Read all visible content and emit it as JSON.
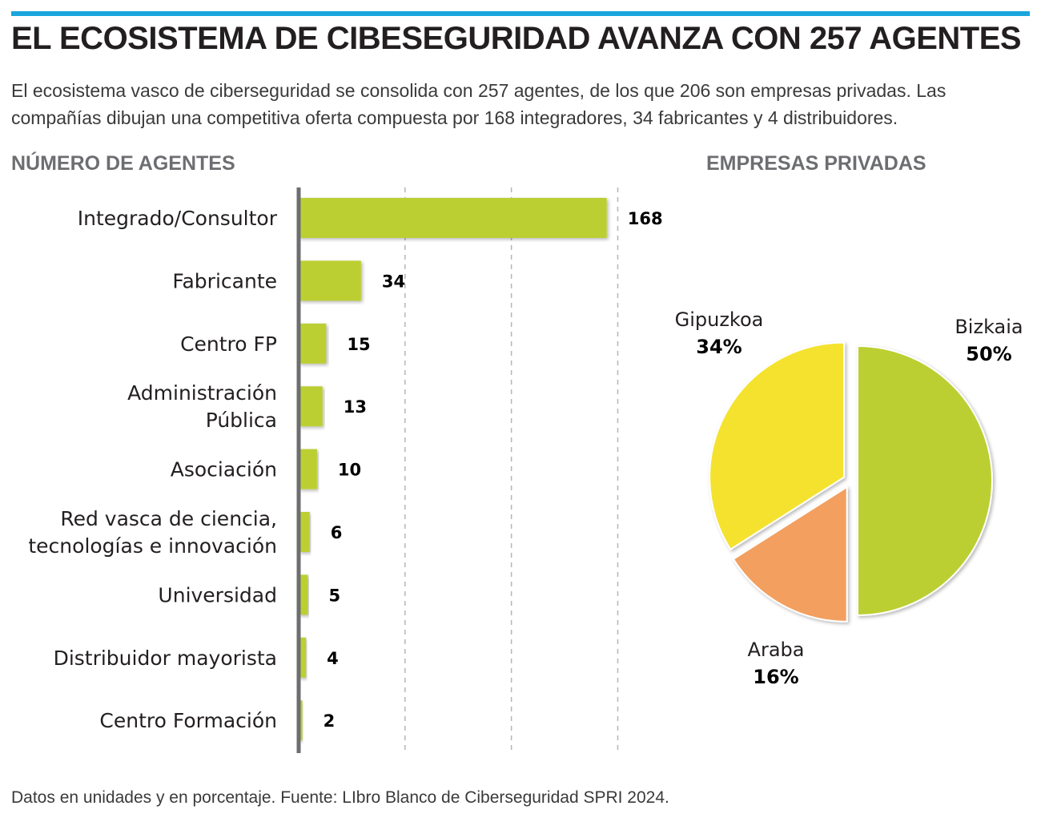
{
  "header": {
    "title": "EL ECOSISTEMA DE CIBESEGURIDAD AVANZA CON 257 AGENTES",
    "lede": "El ecosistema vasco de ciberseguridad se consolida con 257 agentes, de los que 206 son empresas privadas. Las compañías dibujan una competitiva oferta compuesta por 168 integradores, 34 fabricantes y 4 distribuidores."
  },
  "colors": {
    "accent_rule": "#1aa6dd",
    "bar": "#bccf33",
    "axis": "#6d6e71",
    "grid": "#b5b5b5",
    "bizkaia": "#bccf33",
    "gipuzkoa": "#f5e22e",
    "araba": "#f29f5f"
  },
  "chart_data": [
    {
      "type": "bar",
      "orientation": "horizontal",
      "title": "NÚMERO DE AGENTES",
      "categories": [
        [
          "Integrado/Consultor"
        ],
        [
          "Fabricante"
        ],
        [
          "Centro FP"
        ],
        [
          "Administración",
          "Pública"
        ],
        [
          "Asociación"
        ],
        [
          "Red vasca de ciencia,",
          "tecnologías e innovación"
        ],
        [
          "Universidad"
        ],
        [
          "Distribuidor mayorista"
        ],
        [
          "Centro Formación"
        ]
      ],
      "values": [
        168,
        34,
        15,
        13,
        10,
        6,
        5,
        4,
        2
      ],
      "xlim": [
        0,
        175
      ],
      "grid_step": 58,
      "grid": true
    },
    {
      "type": "pie",
      "title": "EMPRESAS PRIVADAS",
      "slices": [
        {
          "name": "Bizkaia",
          "value": 50,
          "label": "50%",
          "color_key": "bizkaia"
        },
        {
          "name": "Araba",
          "value": 16,
          "label": "16%",
          "color_key": "araba"
        },
        {
          "name": "Gipuzkoa",
          "value": 34,
          "label": "34%",
          "color_key": "gipuzkoa"
        }
      ]
    }
  ],
  "footnote": "Datos en unidades y en porcentaje. Fuente: LIbro Blanco de Ciberseguridad SPRI 2024."
}
